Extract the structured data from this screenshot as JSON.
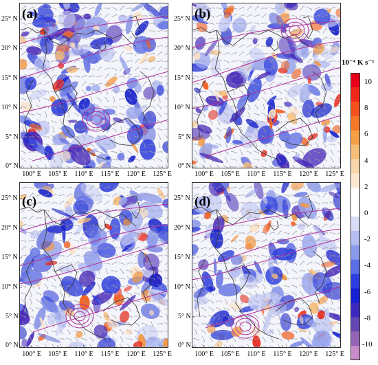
{
  "panels": [
    {
      "letter": "(a)"
    },
    {
      "letter": "(b)"
    },
    {
      "letter": "(c)"
    },
    {
      "letter": "(d)"
    }
  ],
  "lat_labels": [
    "25° N",
    "20° N",
    "15° N",
    "10° N",
    "5° N",
    "0° N"
  ],
  "lon_labels": [
    "100° E",
    "105° E",
    "110° E",
    "115° E",
    "120° E",
    "125° E"
  ],
  "colorbar": {
    "title": "10⁻⁴ K s⁻¹",
    "tick_labels": [
      "10",
      "8",
      "6",
      "4",
      "2",
      "0",
      "-2",
      "-4",
      "-6",
      "-8",
      "-10"
    ],
    "colors": [
      "#e6001a",
      "#f0281a",
      "#f5501e",
      "#f57828",
      "#f5a046",
      "#f7be78",
      "#fad7aa",
      "#fde9d2",
      "#ffffff",
      "#ffffff",
      "#d8dcf5",
      "#b4bdf0",
      "#8c9aeb",
      "#5a6ee6",
      "#2e3ee0",
      "#1420d2",
      "#3c28be",
      "#6446b4",
      "#9664b4",
      "#c88cc8"
    ]
  }
}
